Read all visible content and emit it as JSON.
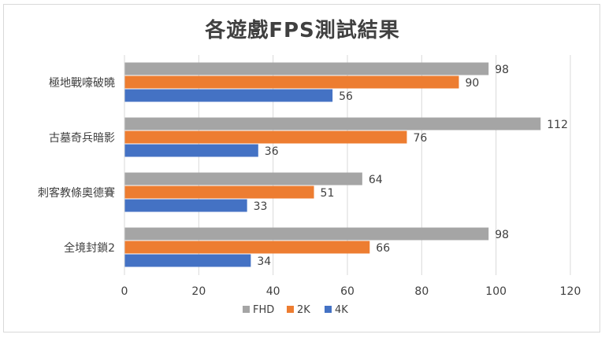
{
  "chart_data": {
    "type": "bar",
    "orientation": "horizontal",
    "title": "各遊戲FPS測試結果",
    "categories": [
      "極地戰嚎破曉",
      "古墓奇兵暗影",
      "刺客教條奧德賽",
      "全境封鎖2"
    ],
    "series": [
      {
        "name": "FHD",
        "color": "#a5a5a5",
        "values": [
          98,
          112,
          64,
          98
        ]
      },
      {
        "name": "2K",
        "color": "#ed7d31",
        "values": [
          90,
          76,
          51,
          66
        ]
      },
      {
        "name": "4K",
        "color": "#4472c4",
        "values": [
          56,
          36,
          33,
          34
        ]
      }
    ],
    "xlim": [
      0,
      120
    ],
    "xticks": [
      0,
      20,
      40,
      60,
      80,
      100,
      120
    ],
    "grid": true,
    "legend": "bottom",
    "data_labels": true
  }
}
